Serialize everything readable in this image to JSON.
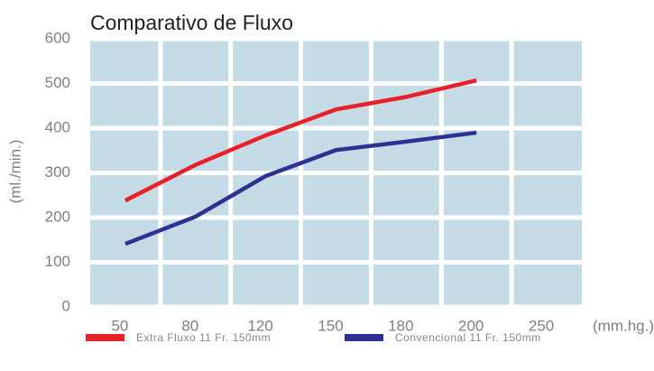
{
  "chart_data": {
    "type": "line",
    "title": "Comparativo de Fluxo",
    "y_label": "(ml./min.)",
    "x_label": "(mm.hg.)",
    "categories": [
      "50",
      "80",
      "120",
      "150",
      "180",
      "200",
      "250"
    ],
    "series": [
      {
        "name": "Extra Fluxo 11 Fr. 150mm",
        "color": "#e8202a",
        "values": [
          238,
          318,
          384,
          442,
          470,
          507,
          null
        ]
      },
      {
        "name": "Convencional 11 Fr. 150mm",
        "color": "#2e3192",
        "values": [
          141,
          202,
          293,
          351,
          370,
          390,
          null
        ]
      }
    ],
    "ylim": [
      0,
      600
    ],
    "yticks": [
      0,
      100,
      200,
      300,
      400,
      500,
      600
    ],
    "grid": true,
    "background": "#c5dce6"
  }
}
